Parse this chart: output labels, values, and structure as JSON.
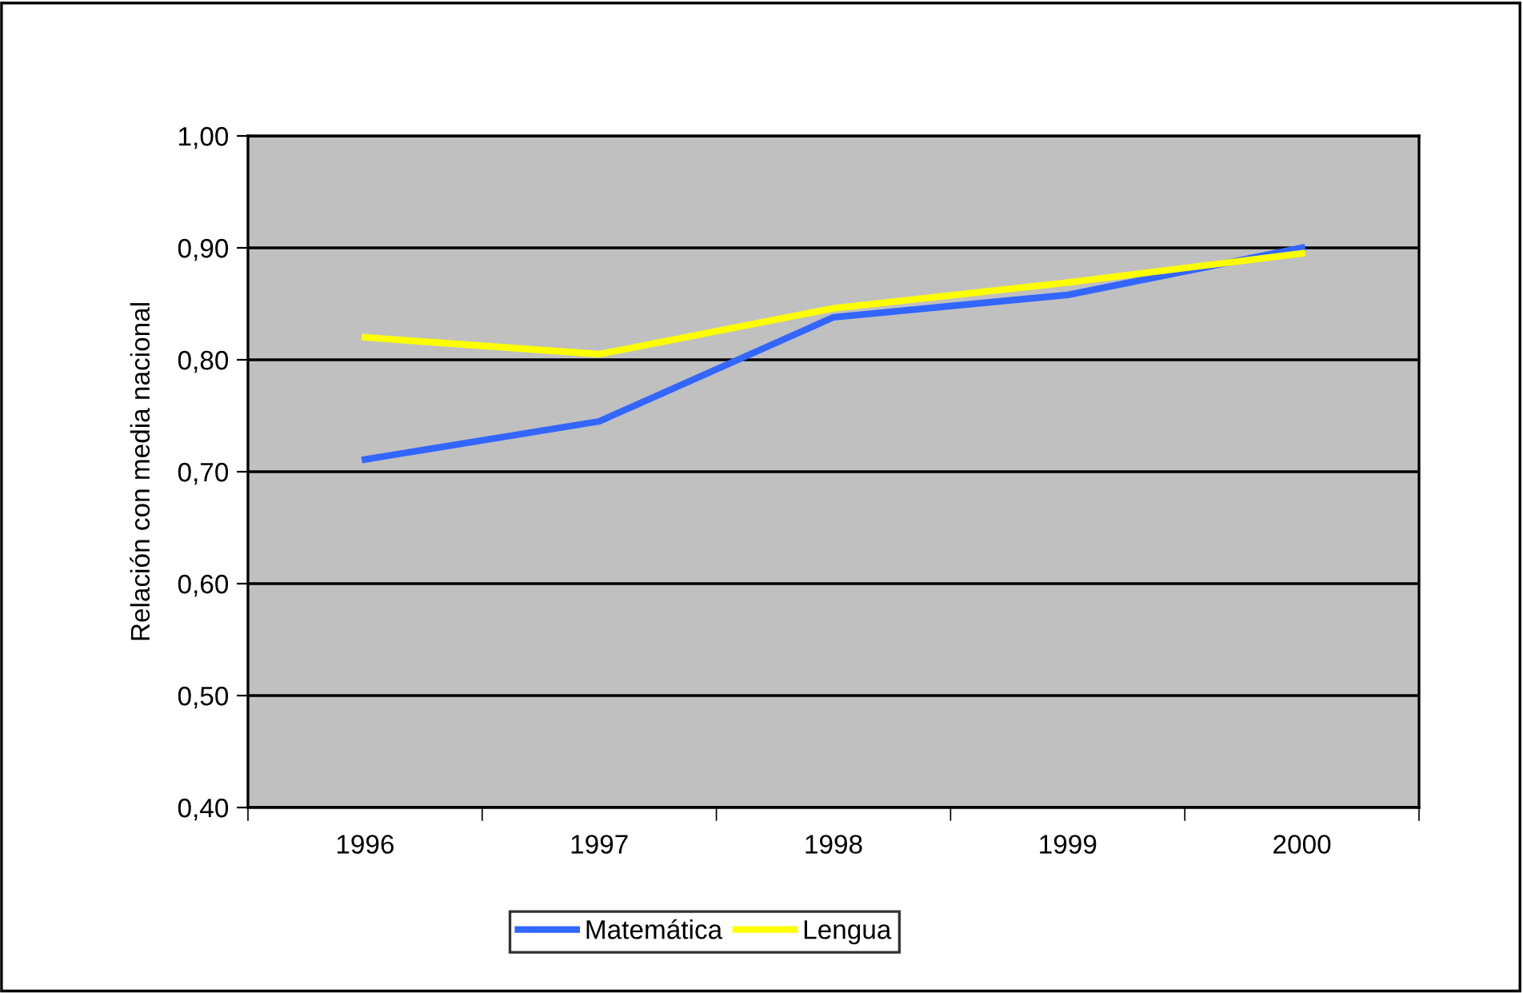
{
  "chart_data": {
    "type": "line",
    "ylabel": "Relación con media nacional",
    "categories": [
      "1996",
      "1997",
      "1998",
      "1999",
      "2000"
    ],
    "series": [
      {
        "name": "Matemática",
        "color": "#3366ff",
        "values": [
          0.711,
          0.745,
          0.838,
          0.858,
          0.9
        ]
      },
      {
        "name": "Lengua",
        "color": "#ffff00",
        "values": [
          0.82,
          0.805,
          0.846,
          0.869,
          0.895
        ]
      }
    ],
    "ylim": [
      0.4,
      1.0
    ],
    "yticks": [
      {
        "value": 0.4,
        "label": "0,40"
      },
      {
        "value": 0.5,
        "label": "0,50"
      },
      {
        "value": 0.6,
        "label": "0,60"
      },
      {
        "value": 0.7,
        "label": "0,70"
      },
      {
        "value": 0.8,
        "label": "0,80"
      },
      {
        "value": 0.9,
        "label": "0,90"
      },
      {
        "value": 1.0,
        "label": "1,00"
      }
    ],
    "grid": "y",
    "legend": "bottom",
    "marker": "none",
    "line_style": "solid"
  }
}
